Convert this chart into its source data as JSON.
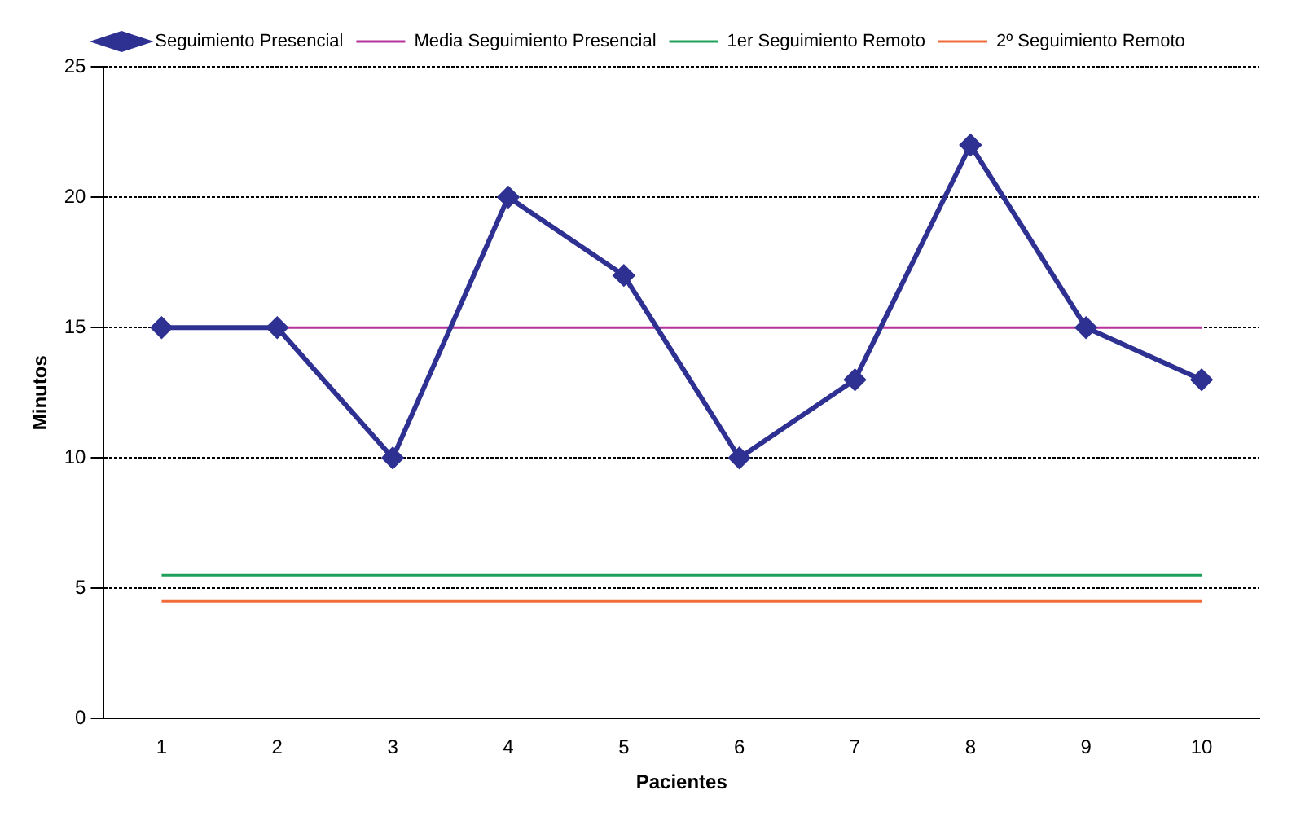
{
  "chart_data": {
    "type": "line",
    "xlabel": "Pacientes",
    "ylabel": "Minutos",
    "categories": [
      "1",
      "2",
      "3",
      "4",
      "5",
      "6",
      "7",
      "8",
      "9",
      "10"
    ],
    "series": [
      {
        "name": "Seguimiento Presencial",
        "color": "#2e3192",
        "values": [
          15,
          15,
          10,
          20,
          17,
          10,
          13,
          22,
          15,
          13
        ],
        "marker": "diamond"
      },
      {
        "name": "Media Seguimiento Presencial",
        "color": "#b5339a",
        "values": [
          15,
          15,
          15,
          15,
          15,
          15,
          15,
          15,
          15,
          15
        ],
        "marker": "none"
      },
      {
        "name": "1er Seguimiento Remoto",
        "color": "#1ea05a",
        "values": [
          5.5,
          5.5,
          5.5,
          5.5,
          5.5,
          5.5,
          5.5,
          5.5,
          5.5,
          5.5
        ],
        "marker": "none"
      },
      {
        "name": "2º Seguimiento Remoto",
        "color": "#f26b3a",
        "values": [
          4.5,
          4.5,
          4.5,
          4.5,
          4.5,
          4.5,
          4.5,
          4.5,
          4.5,
          4.5
        ],
        "marker": "none"
      }
    ],
    "ylim": [
      0,
      25
    ],
    "yticks": [
      0,
      5,
      10,
      15,
      20,
      25
    ],
    "grid": "y",
    "legend": "top",
    "line_style": "solid"
  }
}
